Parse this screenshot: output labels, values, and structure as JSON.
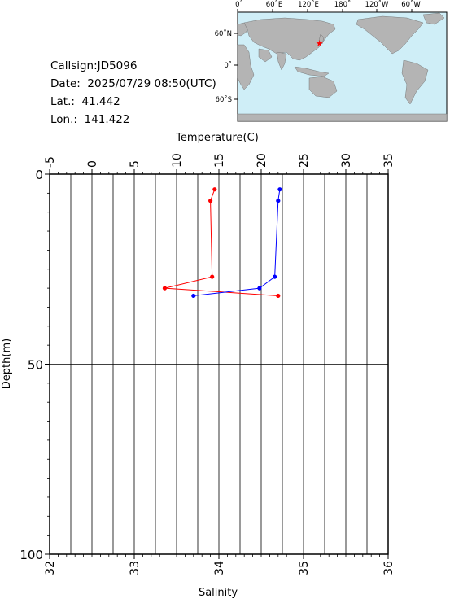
{
  "info": {
    "callsign_label": "Callsign:",
    "callsign": "JD5096",
    "date_label": "Date:",
    "date": "2025/07/29 08:50(UTC)",
    "lat_label": "Lat.:",
    "lat": "41.442",
    "lon_label": "Lon.:",
    "lon": "141.422"
  },
  "map": {
    "lon_ticks": [
      "0˚",
      "60˚E",
      "120˚E",
      "180˚",
      "120˚W",
      "60˚W"
    ],
    "lat_ticks": [
      "60˚N",
      "0˚",
      "60˚S"
    ],
    "colors": {
      "ocean": "#cfeef7",
      "land": "#b4b4b4",
      "marker": "#ff0000"
    },
    "marker": {
      "lat": 41.442,
      "lon": 141.422
    }
  },
  "chart_data": {
    "type": "line",
    "ylabel": "Depth(m)",
    "top_axis_label": "Temperature(C)",
    "bottom_axis_label": "Salinity",
    "y_ticks": [
      "0",
      "50",
      "100"
    ],
    "top_ticks": [
      "-5",
      "0",
      "5",
      "10",
      "15",
      "20",
      "25",
      "30",
      "35"
    ],
    "bottom_ticks": [
      "32",
      "33",
      "34",
      "35",
      "36"
    ],
    "ylim": [
      0,
      100
    ],
    "temperature_lim": [
      -5,
      35
    ],
    "salinity_lim": [
      32,
      36
    ],
    "grid": true,
    "series": [
      {
        "axis": "temperature",
        "color": "#ff0000",
        "depth": [
          4,
          7,
          27,
          30,
          32
        ],
        "values": [
          14.5,
          14.0,
          14.2,
          8.6,
          22.0
        ]
      },
      {
        "axis": "salinity",
        "color": "#0000ff",
        "depth": [
          4,
          7,
          27,
          30,
          32
        ],
        "values": [
          34.72,
          34.7,
          34.66,
          34.48,
          33.7
        ]
      }
    ]
  }
}
